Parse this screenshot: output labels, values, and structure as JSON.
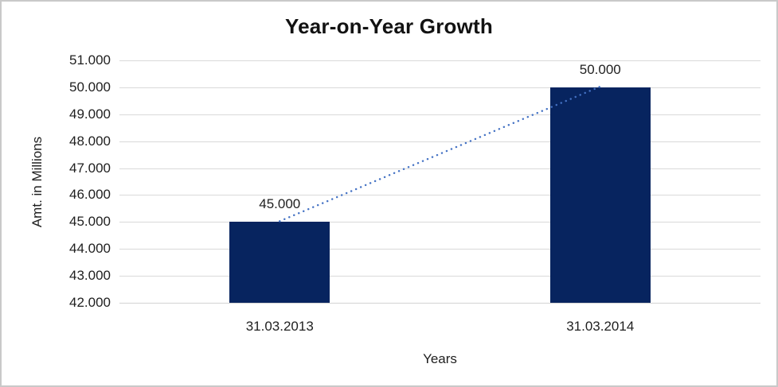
{
  "chart_data": {
    "type": "bar",
    "title": "Year-on-Year Growth",
    "xlabel": "Years",
    "ylabel": "Amt. in Millions",
    "categories": [
      "31.03.2013",
      "31.03.2014"
    ],
    "series": [
      {
        "name": "Amt. in Millions",
        "values": [
          45000,
          50000
        ]
      }
    ],
    "data_labels": [
      "45.000",
      "50.000"
    ],
    "yticks": [
      "51.000",
      "50.000",
      "49.000",
      "48.000",
      "47.000",
      "46.000",
      "45.000",
      "44.000",
      "43.000",
      "42.000"
    ],
    "ylim": [
      42000,
      51000
    ],
    "grid": true,
    "legend_position": "none",
    "colors": {
      "bar": "#07245f",
      "trendline": "#4472c4",
      "gridline": "#d9d9d9",
      "axis_line": "#d2d2d2",
      "frame_border": "#c9c9c9"
    },
    "trendline": {
      "style": "dotted",
      "from_label": "45.000",
      "to_label": "50.000"
    }
  }
}
